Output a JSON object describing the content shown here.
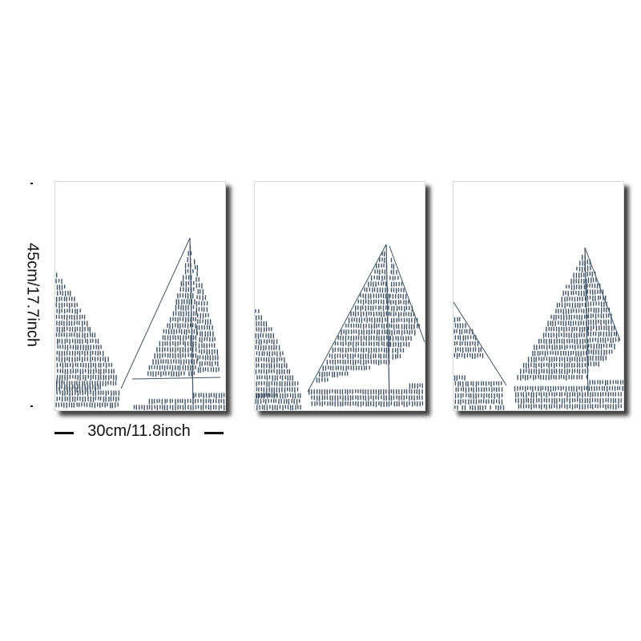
{
  "dimensions": {
    "height_label": "45cm/17.7inch",
    "width_label": "30cm/11.8inch"
  },
  "artwork": {
    "panels": [
      "panel-left",
      "panel-center",
      "panel-right"
    ],
    "ink_color": "#3f5264",
    "background_color": "#ffffff"
  }
}
